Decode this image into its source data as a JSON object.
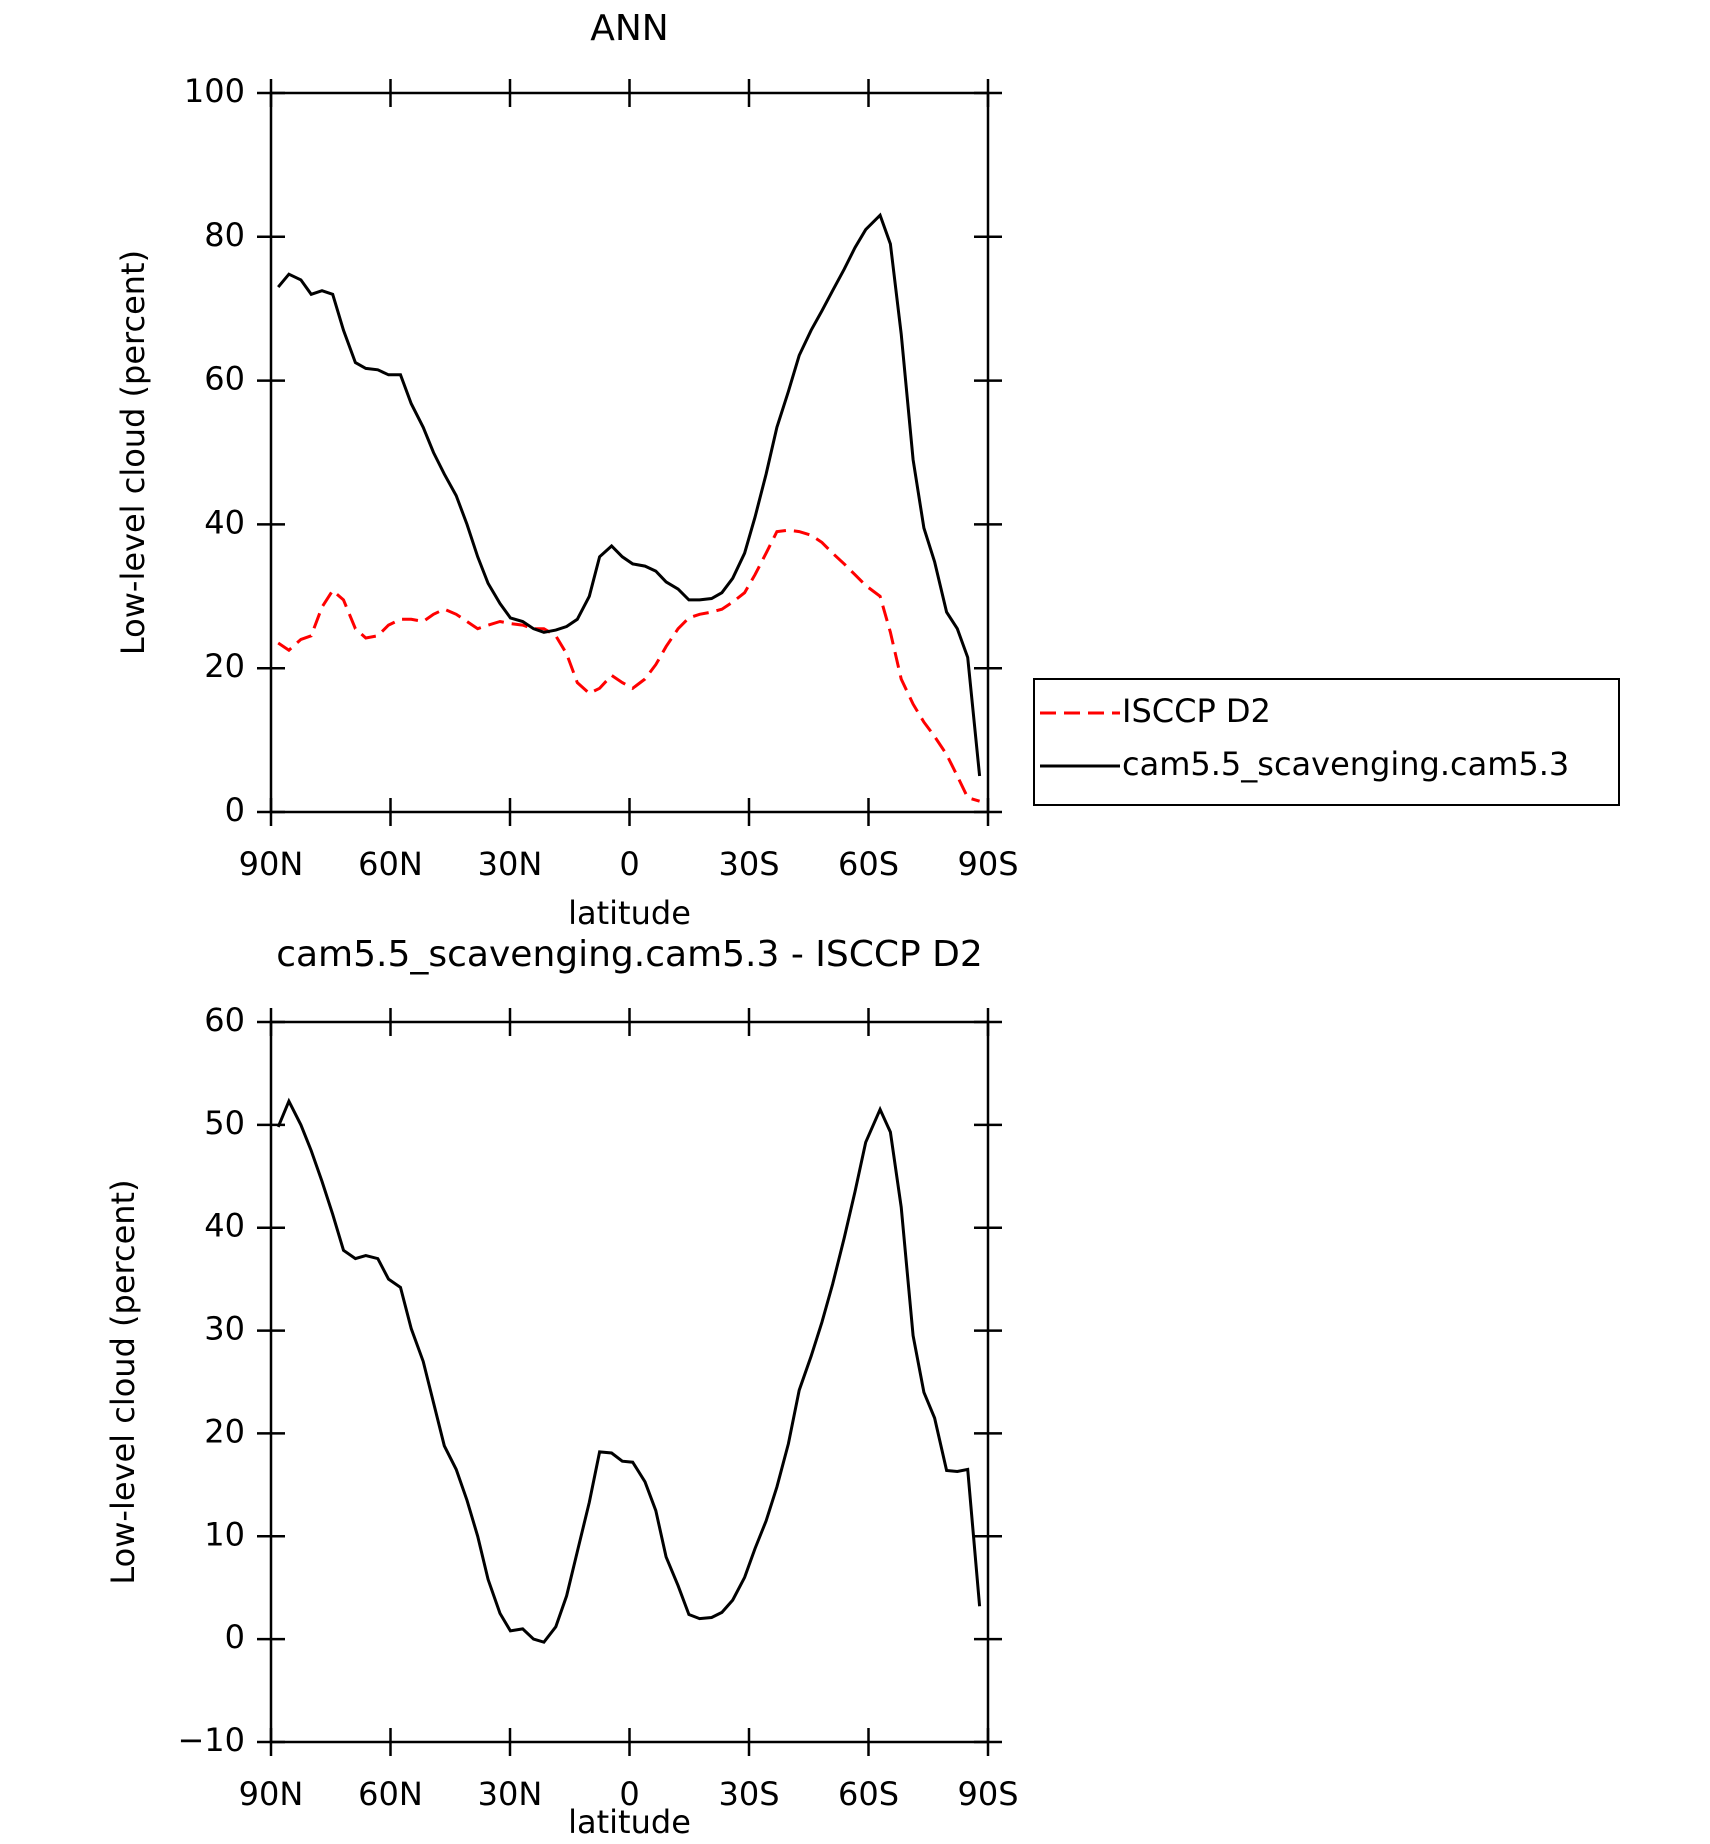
{
  "chart_data": [
    {
      "type": "line",
      "title": "ANN",
      "x_label": "latitude",
      "y_label": "Low-level cloud (percent)",
      "x": [
        88.2,
        85.5,
        82.5,
        79.9,
        77.2,
        74.5,
        71.8,
        68.8,
        66.2,
        63.2,
        60.5,
        57.5,
        54.8,
        51.8,
        49.2,
        46.5,
        43.5,
        40.8,
        38.1,
        35.5,
        32.5,
        29.9,
        26.8,
        24.1,
        21.5,
        18.5,
        15.8,
        13.1,
        10.1,
        7.5,
        4.5,
        1.8,
        -0.8,
        -3.9,
        -6.6,
        -9.2,
        -12.2,
        -14.9,
        -17.6,
        -20.6,
        -23.2,
        -25.9,
        -28.9,
        -31.5,
        -34.3,
        -37,
        -39.9,
        -42.6,
        -45.6,
        -48.3,
        -51,
        -53.9,
        -56.6,
        -59.3,
        -62.9,
        -65.5,
        -68.2,
        -71.2,
        -73.9,
        -76.6,
        -79.6,
        -82.3,
        -84.9,
        -87.9
      ],
      "series": [
        {
          "name": "ISCCP D2",
          "color": "#ff0000",
          "dashed": true,
          "values": [
            23.5,
            22.5,
            24,
            24.5,
            28.5,
            30.8,
            29.5,
            25.5,
            24.2,
            24.5,
            26,
            26.8,
            26.8,
            26.5,
            27.5,
            28.2,
            27.5,
            26.5,
            25.5,
            26,
            26.5,
            26.2,
            26,
            25.5,
            25.5,
            24.5,
            22,
            18,
            16.5,
            17.2,
            19,
            18,
            17.2,
            18.5,
            20.5,
            23,
            25.5,
            27,
            27.5,
            27.8,
            28.2,
            29.2,
            30.5,
            33,
            36,
            39,
            39.2,
            39,
            38.5,
            37.5,
            36,
            34.5,
            33,
            31.5,
            30,
            25,
            18.5,
            15,
            12.5,
            10.5,
            8,
            5,
            2,
            1.5
          ]
        },
        {
          "name": "cam5.5_scavenging.cam5.3",
          "color": "#000000",
          "dashed": false,
          "values": [
            73,
            74.8,
            74,
            72,
            72.5,
            72,
            67,
            62.5,
            61.7,
            61.5,
            60.8,
            60.8,
            56.8,
            53.5,
            50,
            47,
            44,
            40,
            35.5,
            31.8,
            29,
            27,
            26.5,
            25.5,
            25,
            25.3,
            25.8,
            26.8,
            30,
            35.5,
            37,
            35.5,
            34.5,
            34.2,
            33.5,
            32,
            31,
            29.5,
            29.5,
            29.7,
            30.5,
            32.5,
            36,
            41,
            47,
            53.5,
            58.5,
            63.5,
            67,
            69.7,
            72.5,
            75.5,
            78.5,
            81,
            83,
            79,
            66.5,
            49,
            39.5,
            34.8,
            27.8,
            25.5,
            21.5,
            5
          ]
        }
      ],
      "xlim": [
        90,
        -90
      ],
      "xticks": [
        {
          "value": 90,
          "label": "90N"
        },
        {
          "value": 60,
          "label": "60N"
        },
        {
          "value": 30,
          "label": "30N"
        },
        0,
        {
          "value": -30,
          "label": "30S"
        },
        {
          "value": -60,
          "label": "60S"
        },
        {
          "value": -90,
          "label": "90S"
        }
      ],
      "ylim": [
        0,
        100
      ],
      "yticks": [
        0,
        20,
        40,
        60,
        80,
        100
      ],
      "legend": "right"
    },
    {
      "type": "line",
      "title": "cam5.5_scavenging.cam5.3 - ISCCP D2",
      "x_label": "latitude",
      "y_label": "Low-level cloud (percent)",
      "x": [
        88.2,
        85.5,
        82.5,
        79.9,
        77.2,
        74.5,
        71.8,
        68.8,
        66.2,
        63.2,
        60.5,
        57.5,
        54.8,
        51.8,
        49.2,
        46.5,
        43.5,
        40.8,
        38.1,
        35.5,
        32.5,
        29.9,
        26.8,
        24.1,
        21.5,
        18.5,
        15.8,
        13.1,
        10.1,
        7.5,
        4.5,
        1.8,
        -0.8,
        -3.9,
        -6.6,
        -9.2,
        -12.2,
        -14.9,
        -17.6,
        -20.6,
        -23.2,
        -25.9,
        -28.9,
        -31.5,
        -34.3,
        -37,
        -39.9,
        -42.6,
        -45.6,
        -48.3,
        -51,
        -53.9,
        -56.6,
        -59.3,
        -62.9,
        -65.5,
        -68.2,
        -71.2,
        -73.9,
        -76.6,
        -79.6,
        -82.3,
        -84.9,
        -87.9
      ],
      "series": [
        {
          "color": "#000000",
          "dashed": false,
          "values": [
            49.8,
            52.3,
            50,
            47.5,
            44.5,
            41.3,
            37.8,
            37,
            37.3,
            37,
            35,
            34.2,
            30.2,
            27,
            23,
            18.8,
            16.5,
            13.5,
            10,
            5.8,
            2.5,
            0.8,
            1,
            0,
            -0.3,
            1.2,
            4.2,
            8.5,
            13.3,
            18.2,
            18.1,
            17.3,
            17.2,
            15.3,
            12.5,
            8,
            5.2,
            2.4,
            2,
            2.1,
            2.6,
            3.8,
            6,
            8.8,
            11.5,
            14.8,
            19,
            24.2,
            27.5,
            30.8,
            34.5,
            39,
            43.5,
            48.3,
            51.5,
            49.3,
            42,
            29.5,
            24,
            21.5,
            16.4,
            16.3,
            16.5,
            3.2
          ]
        }
      ],
      "xlim": [
        90,
        -90
      ],
      "xticks": [
        {
          "value": 90,
          "label": "90N"
        },
        {
          "value": 60,
          "label": "60N"
        },
        {
          "value": 30,
          "label": "30N"
        },
        0,
        {
          "value": -30,
          "label": "30S"
        },
        {
          "value": -60,
          "label": "60S"
        },
        {
          "value": -90,
          "label": "90S"
        }
      ],
      "ylim": [
        -10,
        60
      ],
      "yticks": [
        {
          "value": -10,
          "label": "−10"
        },
        0,
        10,
        20,
        30,
        40,
        50,
        60
      ]
    }
  ]
}
